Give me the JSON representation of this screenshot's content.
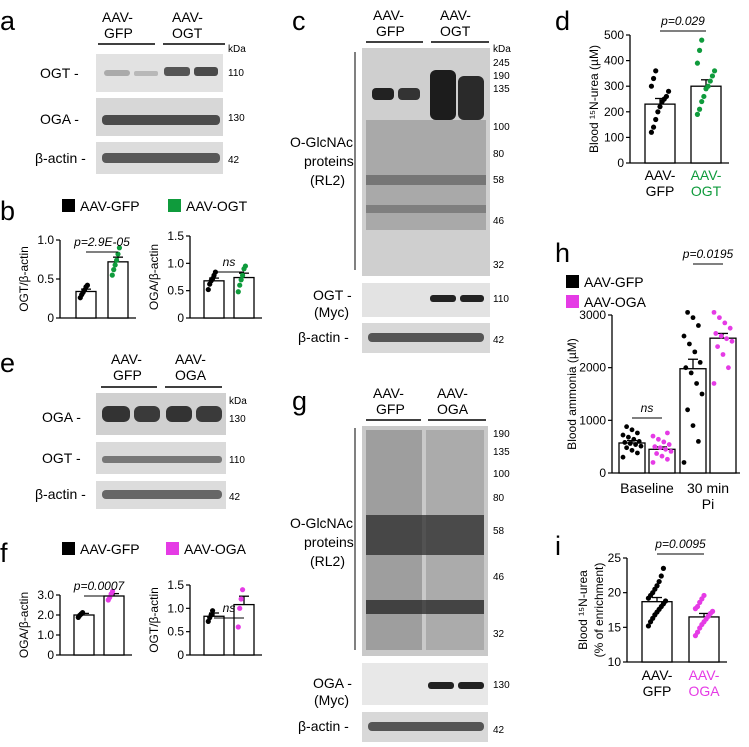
{
  "colors": {
    "gfp": "#000000",
    "ogt": "#0f9b3c",
    "oga": "#e53be5",
    "blot_bg": "#d6d6d6"
  },
  "panels": {
    "a": "a",
    "b": "b",
    "c": "c",
    "d": "d",
    "e": "e",
    "f": "f",
    "g": "g",
    "h": "h",
    "i": "i"
  },
  "a": {
    "groups": [
      "AAV-\nGFP",
      "AAV-\nOGT"
    ],
    "kda": "kDa",
    "rows": [
      {
        "label": "OGT -",
        "mw": "110"
      },
      {
        "label": "OGA -",
        "mw": "130"
      },
      {
        "label": "β-actin -",
        "mw": "42"
      }
    ]
  },
  "legend_bd": {
    "gfp": "AAV-GFP",
    "ogt": "AAV-OGT"
  },
  "legend_f": {
    "gfp": "AAV-GFP",
    "oga": "AAV-OGA"
  },
  "legend_h": {
    "gfp": "AAV-GFP",
    "oga": "AAV-OGA"
  },
  "c": {
    "groups": [
      "AAV-\nGFP",
      "AAV-\nOGT"
    ],
    "kda": "kDa",
    "mw": [
      "245",
      "190",
      "135",
      "100",
      "80",
      "58",
      "46",
      "32"
    ],
    "main_label": [
      "O-GlcNAc",
      "proteins",
      "(RL2)"
    ],
    "rows": [
      {
        "label": "OGT -",
        "sub": "(Myc)",
        "mw": "110"
      },
      {
        "label": "β-actin -",
        "mw": "42"
      }
    ]
  },
  "e": {
    "groups": [
      "AAV-\nGFP",
      "AAV-\nOGA"
    ],
    "kda": "kDa",
    "rows": [
      {
        "label": "OGA -",
        "mw": "130"
      },
      {
        "label": "OGT -",
        "mw": "110"
      },
      {
        "label": "β-actin -",
        "mw": "42"
      }
    ]
  },
  "g": {
    "groups": [
      "AAV-\nGFP",
      "AAV-\nOGA"
    ],
    "mw": [
      "190",
      "135",
      "100",
      "80",
      "58",
      "46",
      "32"
    ],
    "main_label": [
      "O-GlcNAc",
      "proteins",
      "(RL2)"
    ],
    "rows": [
      {
        "label": "OGA -",
        "sub": "(Myc)",
        "mw": "130"
      },
      {
        "label": "β-actin -",
        "mw": "42"
      }
    ]
  },
  "chart_data": [
    {
      "id": "b1",
      "type": "bar",
      "categories": [
        "AAV-GFP",
        "AAV-OGT"
      ],
      "values": [
        0.34,
        0.72
      ],
      "errors": [
        0.03,
        0.06
      ],
      "points": [
        [
          0.26,
          0.3,
          0.33,
          0.36,
          0.4,
          0.42
        ],
        [
          0.55,
          0.62,
          0.68,
          0.74,
          0.82,
          0.9
        ]
      ],
      "ylabel": "OGT/β-actin",
      "ylim": [
        0,
        1.0
      ],
      "yticks": [
        "0",
        "0.5",
        "1.0"
      ],
      "annotation": "p=2.9E-05"
    },
    {
      "id": "b2",
      "type": "bar",
      "categories": [
        "AAV-GFP",
        "AAV-OGT"
      ],
      "values": [
        0.68,
        0.74
      ],
      "errors": [
        0.05,
        0.08
      ],
      "points": [
        [
          0.52,
          0.62,
          0.68,
          0.72,
          0.78,
          0.84
        ],
        [
          0.48,
          0.6,
          0.7,
          0.78,
          0.9,
          0.95
        ]
      ],
      "ylabel": "OGA/β-actin",
      "ylim": [
        0,
        1.5
      ],
      "yticks": [
        "0",
        "0.5",
        "1.0",
        "1.5"
      ],
      "annotation": "ns"
    },
    {
      "id": "d",
      "type": "bar",
      "categories": [
        "AAV-GFP",
        "AAV-OGT"
      ],
      "values": [
        230,
        300
      ],
      "errors": [
        22,
        25
      ],
      "points": [
        [
          120,
          140,
          170,
          200,
          220,
          240,
          250,
          260,
          280,
          300,
          330,
          360
        ],
        [
          190,
          210,
          240,
          260,
          290,
          300,
          320,
          340,
          360,
          390,
          440,
          480
        ]
      ],
      "ylabel": "Blood ¹⁵N-urea (µM)",
      "ylim": [
        0,
        500
      ],
      "yticks": [
        "0",
        "100",
        "200",
        "300",
        "400",
        "500"
      ],
      "annotation": "p=0.029"
    },
    {
      "id": "f1",
      "type": "bar",
      "categories": [
        "AAV-GFP",
        "AAV-OGA"
      ],
      "values": [
        2.0,
        2.95
      ],
      "errors": [
        0.08,
        0.12
      ],
      "points": [
        [
          1.88,
          1.98,
          2.05,
          2.12
        ],
        [
          2.75,
          2.88,
          3.05,
          3.2
        ]
      ],
      "ylabel": "OGA/β-actin",
      "ylim": [
        0,
        3.0
      ],
      "yticks": [
        "0",
        "1.0",
        "2.0",
        "3.0"
      ],
      "annotation": "p=0.0007"
    },
    {
      "id": "f2",
      "type": "bar",
      "categories": [
        "AAV-GFP",
        "AAV-OGA"
      ],
      "values": [
        0.83,
        1.08
      ],
      "errors": [
        0.07,
        0.18
      ],
      "points": [
        [
          0.72,
          0.8,
          0.86,
          0.95
        ],
        [
          0.6,
          1.0,
          1.2,
          1.4
        ]
      ],
      "ylabel": "OGT/β-actin",
      "ylim": [
        0,
        1.5
      ],
      "yticks": [
        "0",
        "0.5",
        "1.0",
        "1.5"
      ],
      "annotation": "ns"
    },
    {
      "id": "h",
      "type": "bar",
      "categories": [
        "Baseline",
        "30 min\nPi"
      ],
      "series": [
        {
          "name": "AAV-GFP",
          "values": [
            570,
            1980
          ],
          "errors": [
            45,
            180
          ],
          "points": [
            [
              300,
              380,
              430,
              480,
              510,
              540,
              560,
              580,
              600,
              640,
              680,
              720,
              760,
              820,
              880
            ],
            [
              200,
              600,
              900,
              1200,
              1500,
              1700,
              1900,
              2000,
              2100,
              2300,
              2450,
              2600,
              2800,
              2950,
              3050
            ]
          ]
        },
        {
          "name": "AAV-OGA",
          "values": [
            450,
            2560
          ],
          "errors": [
            45,
            90
          ],
          "points": [
            [
              200,
              260,
              320,
              370,
              410,
              450,
              480,
              500,
              540,
              590,
              640,
              700,
              760
            ],
            [
              1700,
              2000,
              2250,
              2400,
              2500,
              2550,
              2600,
              2650,
              2750,
              2850,
              2950,
              3050
            ]
          ]
        }
      ],
      "ylabel": "Blood ammonia (µM)",
      "ylim": [
        0,
        3000
      ],
      "yticks": [
        "0",
        "1000",
        "2000",
        "3000"
      ],
      "annotations": [
        "ns",
        "p=0.0195"
      ]
    },
    {
      "id": "i",
      "type": "bar",
      "categories": [
        "AAV-GFP",
        "AAV-OGA"
      ],
      "values": [
        18.7,
        16.5
      ],
      "errors": [
        0.6,
        0.5
      ],
      "points": [
        [
          15.2,
          15.8,
          16.3,
          16.8,
          17.2,
          17.6,
          18.0,
          18.4,
          18.8,
          19.2,
          19.6,
          20.0,
          20.5,
          21.0,
          21.6,
          22.4,
          23.5
        ],
        [
          13.8,
          14.3,
          14.9,
          15.4,
          15.8,
          16.2,
          16.6,
          17.0,
          17.3,
          17.7,
          18.0,
          18.6,
          19.1,
          19.6
        ]
      ],
      "ylabel": "Blood ¹⁵N-urea\n(% of enrichment)",
      "ylim": [
        10,
        25
      ],
      "yticks": [
        "10",
        "15",
        "20",
        "25"
      ],
      "annotation": "p=0.0095"
    }
  ]
}
